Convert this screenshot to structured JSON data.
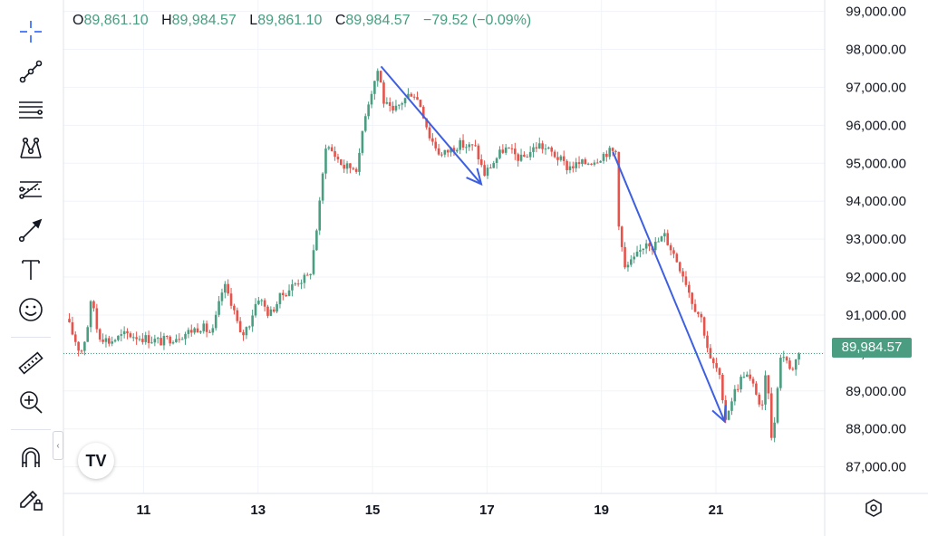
{
  "legend": {
    "open_key": "O",
    "open": "89,861.10",
    "high_key": "H",
    "high": "89,984.57",
    "low_key": "L",
    "low": "89,861.10",
    "close_key": "C",
    "close": "89,984.57",
    "change": "−79.52 (−0.09%)"
  },
  "last_price_label": "89,984.57",
  "logo_text": "TV",
  "toolbar_icons": [
    "crosshair-icon",
    "trend-line-icon",
    "horizontal-lines-icon",
    "pattern-icon",
    "fib-icon",
    "arrow-icon",
    "text-icon",
    "emoji-icon",
    "ruler-icon",
    "zoom-in-icon",
    "magnet-icon",
    "lock-draw-icon"
  ],
  "colors": {
    "up": "#4a9d80",
    "down": "#e5534b",
    "arrow": "#3d5fe0",
    "last_price_line": "#4a9d80"
  },
  "chart_data": {
    "type": "candlestick",
    "y_tick_labels": [
      "99,000.00",
      "98,000.00",
      "97,000.00",
      "96,000.00",
      "95,000.00",
      "94,000.00",
      "93,000.00",
      "92,000.00",
      "91,000.00",
      "90,000.00",
      "89,000.00",
      "88,000.00",
      "87,000.00"
    ],
    "y_ticks": [
      99000,
      98000,
      97000,
      96000,
      95000,
      94000,
      93000,
      92000,
      91000,
      90000,
      89000,
      88000,
      87000
    ],
    "ylim": [
      86300,
      99300
    ],
    "x_tick_labels": [
      "11",
      "13",
      "15",
      "17",
      "19",
      "21"
    ],
    "x_ticks": [
      11,
      13,
      15,
      17,
      19,
      21
    ],
    "xlim": [
      9.6,
      22.9
    ],
    "last_price": 89984.57,
    "close_path": [
      [
        9.65,
        90900
      ],
      [
        9.9,
        90000
      ],
      [
        10.0,
        90500
      ],
      [
        10.1,
        91500
      ],
      [
        10.2,
        90500
      ],
      [
        10.4,
        90300
      ],
      [
        10.7,
        90500
      ],
      [
        11.0,
        90400
      ],
      [
        11.3,
        90300
      ],
      [
        11.7,
        90500
      ],
      [
        12.0,
        90700
      ],
      [
        12.2,
        90500
      ],
      [
        12.4,
        91800
      ],
      [
        12.55,
        91300
      ],
      [
        12.7,
        90400
      ],
      [
        12.85,
        90800
      ],
      [
        13.0,
        91500
      ],
      [
        13.2,
        91000
      ],
      [
        13.4,
        91500
      ],
      [
        13.7,
        91900
      ],
      [
        13.9,
        92000
      ],
      [
        14.0,
        93000
      ],
      [
        14.1,
        94200
      ],
      [
        14.18,
        95500
      ],
      [
        14.3,
        95300
      ],
      [
        14.5,
        94900
      ],
      [
        14.75,
        94900
      ],
      [
        14.85,
        96200
      ],
      [
        15.0,
        97000
      ],
      [
        15.1,
        97500
      ],
      [
        15.2,
        96600
      ],
      [
        15.35,
        96300
      ],
      [
        15.5,
        96600
      ],
      [
        15.7,
        96900
      ],
      [
        15.85,
        96500
      ],
      [
        16.0,
        95700
      ],
      [
        16.2,
        95200
      ],
      [
        16.5,
        95500
      ],
      [
        16.8,
        95400
      ],
      [
        16.95,
        94700
      ],
      [
        17.1,
        95000
      ],
      [
        17.3,
        95400
      ],
      [
        17.6,
        95100
      ],
      [
        17.9,
        95500
      ],
      [
        18.2,
        95200
      ],
      [
        18.4,
        94900
      ],
      [
        18.7,
        95000
      ],
      [
        18.9,
        95100
      ],
      [
        19.1,
        95300
      ],
      [
        19.25,
        95300
      ],
      [
        19.3,
        93500
      ],
      [
        19.4,
        92200
      ],
      [
        19.6,
        92500
      ],
      [
        19.8,
        93000
      ],
      [
        19.9,
        92800
      ],
      [
        20.1,
        93100
      ],
      [
        20.3,
        92500
      ],
      [
        20.45,
        92000
      ],
      [
        20.6,
        91300
      ],
      [
        20.75,
        90900
      ],
      [
        20.9,
        89800
      ],
      [
        21.05,
        89500
      ],
      [
        21.15,
        88200
      ],
      [
        21.3,
        88900
      ],
      [
        21.5,
        89500
      ],
      [
        21.7,
        89000
      ],
      [
        21.8,
        88400
      ],
      [
        21.9,
        89800
      ],
      [
        21.95,
        87500
      ],
      [
        22.05,
        88500
      ],
      [
        22.1,
        89800
      ],
      [
        22.2,
        90000
      ],
      [
        22.3,
        89500
      ],
      [
        22.45,
        89984.57
      ]
    ],
    "trend_arrows": [
      {
        "from": [
          15.15,
          97550
        ],
        "to": [
          16.9,
          94450
        ]
      },
      {
        "from": [
          19.2,
          95300
        ],
        "to": [
          21.15,
          88200
        ]
      }
    ]
  }
}
